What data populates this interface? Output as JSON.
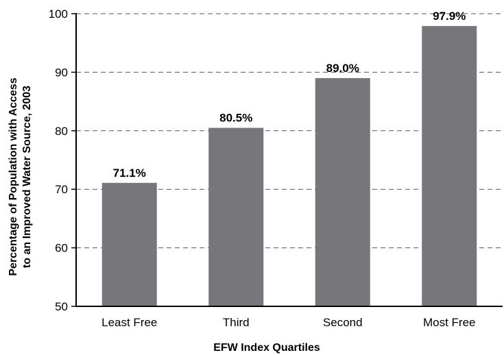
{
  "chart_data": {
    "type": "bar",
    "categories": [
      "Least Free",
      "Third",
      "Second",
      "Most Free"
    ],
    "values": [
      71.1,
      80.5,
      89.0,
      97.9
    ],
    "data_labels": [
      "71.1%",
      "80.5%",
      "89.0%",
      "97.9%"
    ],
    "xlabel": "EFW Index Quartiles",
    "ylabel_lines": [
      "Percentage of Population with Access",
      "to an Improved Water Source, 2003"
    ],
    "ylim": [
      50,
      100
    ],
    "yticks": [
      50,
      60,
      70,
      80,
      90,
      100
    ],
    "grid": "dashed horizontal",
    "bar_color": "#77777b"
  }
}
